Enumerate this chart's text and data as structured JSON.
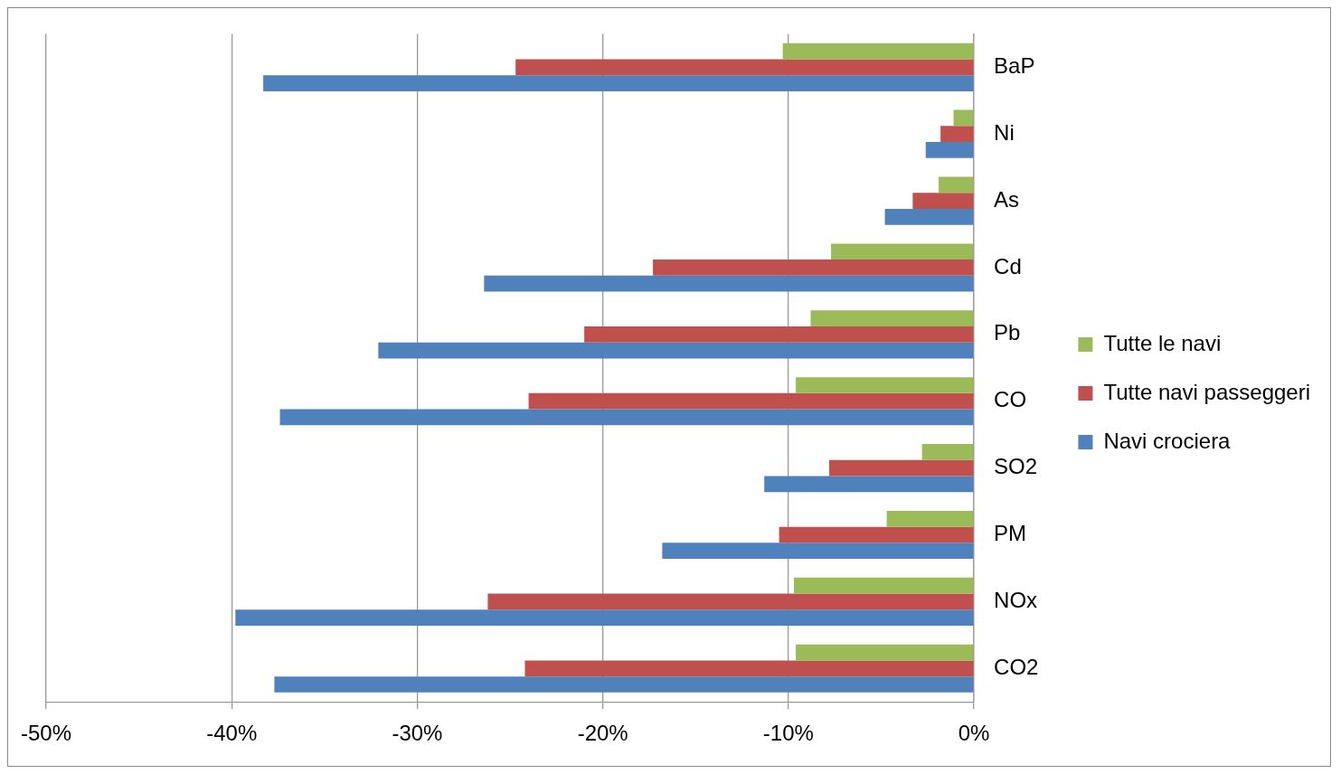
{
  "chart_data": {
    "type": "bar",
    "orientation": "horizontal",
    "categories": [
      "BaP",
      "Ni",
      "As",
      "Cd",
      "Pb",
      "CO",
      "SO2",
      "PM",
      "NOx",
      "CO2"
    ],
    "series": [
      {
        "name": "Tutte le navi",
        "color": "#9bbb59",
        "values": [
          -10.3,
          -1.1,
          -1.9,
          -7.7,
          -8.8,
          -9.6,
          -2.8,
          -4.7,
          -9.7,
          -9.6
        ]
      },
      {
        "name": "Tutte navi passeggeri",
        "color": "#c0504d",
        "values": [
          -24.7,
          -1.8,
          -3.3,
          -17.3,
          -21.0,
          -24.0,
          -7.8,
          -10.5,
          -26.2,
          -24.2
        ]
      },
      {
        "name": "Navi crociera",
        "color": "#4f81bd",
        "values": [
          -38.3,
          -2.6,
          -4.8,
          -26.4,
          -32.1,
          -37.4,
          -11.3,
          -16.8,
          -39.8,
          -37.7
        ]
      }
    ],
    "xlim": [
      -50,
      0
    ],
    "xticks": [
      {
        "value": -50,
        "label": "-50%"
      },
      {
        "value": -40,
        "label": "-40%"
      },
      {
        "value": -30,
        "label": "-30%"
      },
      {
        "value": -20,
        "label": "-20%"
      },
      {
        "value": -10,
        "label": "-10%"
      },
      {
        "value": 0,
        "label": "0%"
      }
    ],
    "grid": "x",
    "legend": "right"
  }
}
